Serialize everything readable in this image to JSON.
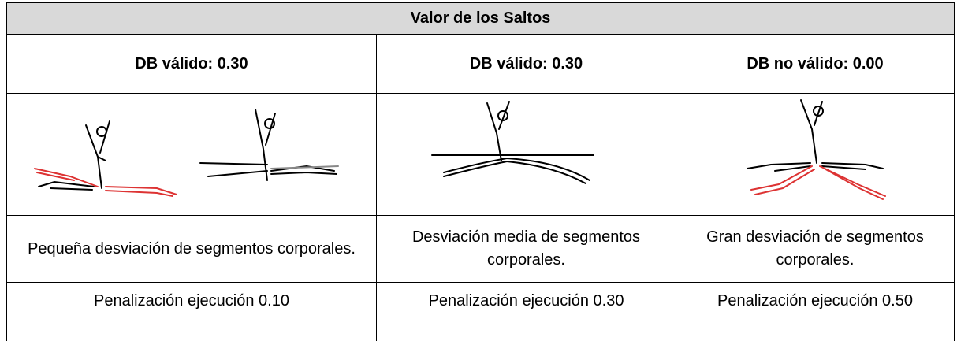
{
  "header": {
    "title": "Valor de los Saltos"
  },
  "table": {
    "columns": [
      "DB válido: 0.30",
      "DB válido: 0.30",
      "DB no válido: 0.00"
    ],
    "descriptions": [
      "Pequeña desviación de segmentos corporales.",
      "Desviación media de segmentos corporales.",
      "Gran desviación de segmentos corporales."
    ],
    "penalties": [
      "Penalización ejecución 0.10",
      "Penalización ejecución 0.30",
      "Penalización ejecución 0.50"
    ]
  }
}
